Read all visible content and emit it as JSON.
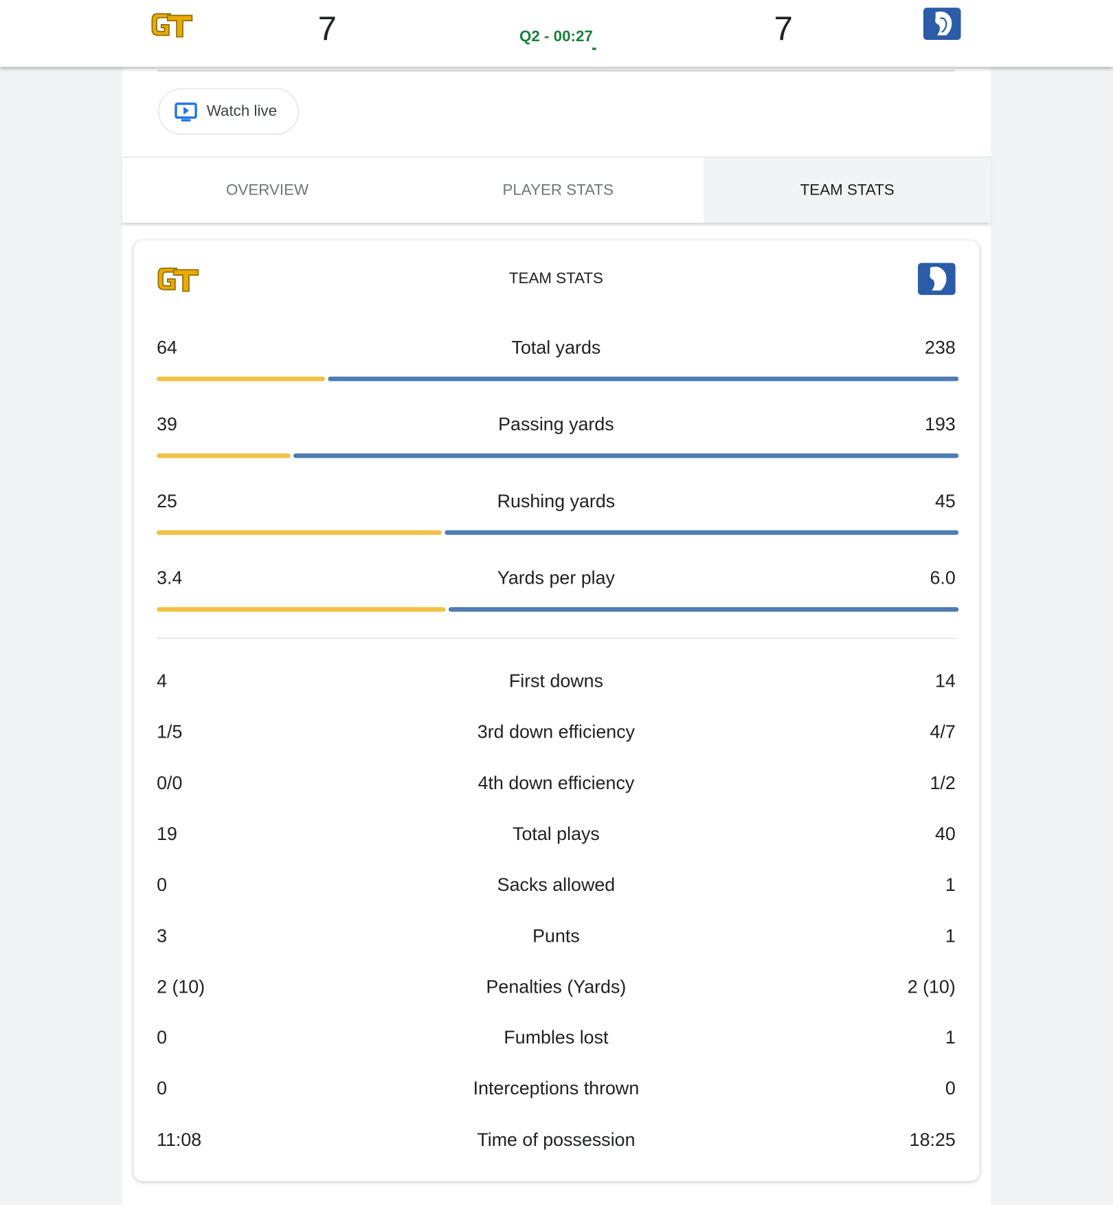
{
  "header": {
    "home_score": "7",
    "clock": "Q2 - 00:27",
    "away_score": "7"
  },
  "watch_live": "Watch live",
  "tabs": [
    "OVERVIEW",
    "PLAYER STATS",
    "TEAM STATS"
  ],
  "card": {
    "title": "TEAM STATS",
    "bar_stats": [
      {
        "label": "Total yards",
        "home": 64,
        "away": 238
      },
      {
        "label": "Passing yards",
        "home": 39,
        "away": 193
      },
      {
        "label": "Rushing yards",
        "home": 25,
        "away": 45
      },
      {
        "label": "Yards per play",
        "home": 3.4,
        "away": 6,
        "away_label": "6.0"
      }
    ],
    "stats": [
      {
        "home": "4",
        "label": "First downs",
        "away": "14"
      },
      {
        "home": "1/5",
        "label": "3rd down efficiency",
        "away": "4/7"
      },
      {
        "home": "0/0",
        "label": "4th down efficiency",
        "away": "1/2"
      },
      {
        "home": "19",
        "label": "Total plays",
        "away": "40"
      },
      {
        "home": "0",
        "label": "Sacks allowed",
        "away": "1"
      },
      {
        "home": "3",
        "label": "Punts",
        "away": "1"
      },
      {
        "home": "2 (10)",
        "label": "Penalties (Yards)",
        "away": "2 (10)"
      },
      {
        "home": "0",
        "label": "Fumbles lost",
        "away": "1"
      },
      {
        "home": "0",
        "label": "Interceptions thrown",
        "away": "0"
      },
      {
        "home": "11:08",
        "label": "Time of possession",
        "away": "18:25"
      }
    ]
  }
}
